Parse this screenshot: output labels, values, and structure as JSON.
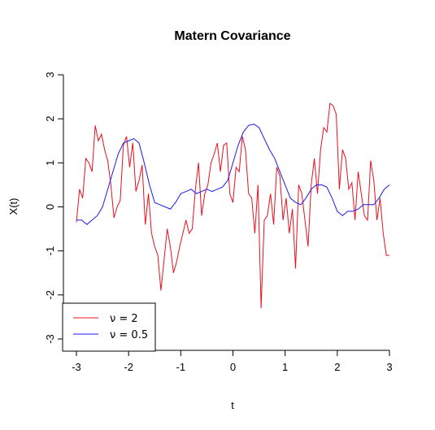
{
  "chart_data": {
    "type": "line",
    "title": "Matern Covariance",
    "xlabel": "t",
    "ylabel": "X(t)",
    "xlim": [
      -3,
      3
    ],
    "ylim": [
      -3,
      3
    ],
    "xticks": [
      "-3",
      "-2",
      "-1",
      "0",
      "1",
      "2",
      "3"
    ],
    "yticks": [
      "-3",
      "-2",
      "-1",
      "0",
      "1",
      "2",
      "3"
    ],
    "grid": false,
    "legend_position": "bottom-left",
    "series": [
      {
        "name": "ν = 2",
        "color": "#e8101f",
        "x": [
          -3.0,
          -2.94,
          -2.88,
          -2.82,
          -2.76,
          -2.7,
          -2.64,
          -2.58,
          -2.52,
          -2.46,
          -2.4,
          -2.34,
          -2.28,
          -2.22,
          -2.16,
          -2.1,
          -2.04,
          -1.98,
          -1.92,
          -1.86,
          -1.8,
          -1.74,
          -1.68,
          -1.62,
          -1.56,
          -1.5,
          -1.44,
          -1.38,
          -1.32,
          -1.26,
          -1.2,
          -1.14,
          -1.08,
          -1.02,
          -0.96,
          -0.9,
          -0.84,
          -0.78,
          -0.72,
          -0.66,
          -0.6,
          -0.54,
          -0.48,
          -0.42,
          -0.36,
          -0.3,
          -0.24,
          -0.18,
          -0.12,
          -0.06,
          0.0,
          0.06,
          0.12,
          0.18,
          0.24,
          0.3,
          0.36,
          0.42,
          0.48,
          0.54,
          0.6,
          0.66,
          0.72,
          0.78,
          0.84,
          0.9,
          0.96,
          1.02,
          1.08,
          1.14,
          1.2,
          1.26,
          1.32,
          1.38,
          1.44,
          1.5,
          1.56,
          1.62,
          1.68,
          1.74,
          1.8,
          1.86,
          1.92,
          1.98,
          2.04,
          2.1,
          2.16,
          2.22,
          2.28,
          2.34,
          2.4,
          2.46,
          2.52,
          2.58,
          2.64,
          2.7,
          2.76,
          2.82,
          2.88,
          2.94,
          3.0
        ],
        "y": [
          -0.35,
          0.4,
          0.2,
          1.1,
          1.0,
          0.8,
          1.85,
          1.5,
          1.65,
          1.3,
          1.05,
          0.5,
          -0.25,
          0.0,
          0.15,
          1.4,
          1.6,
          0.9,
          1.45,
          0.35,
          0.6,
          0.95,
          -0.4,
          0.3,
          -0.6,
          -0.9,
          -1.1,
          -1.9,
          -1.2,
          -0.5,
          -0.9,
          -1.5,
          -1.25,
          -0.9,
          -0.6,
          -0.3,
          -0.6,
          -0.5,
          0.4,
          1.0,
          -0.2,
          0.3,
          0.5,
          1.0,
          1.2,
          1.45,
          0.8,
          1.4,
          1.45,
          0.3,
          0.1,
          0.9,
          0.8,
          1.6,
          1.3,
          0.3,
          0.2,
          -0.6,
          0.5,
          -2.3,
          -0.3,
          -0.2,
          0.3,
          -0.4,
          0.9,
          0.7,
          -0.3,
          0.2,
          -0.6,
          -0.05,
          -1.4,
          0.5,
          0.3,
          -0.3,
          -0.9,
          0.5,
          1.1,
          0.3,
          1.3,
          1.8,
          1.7,
          2.35,
          2.3,
          2.1,
          0.4,
          1.3,
          1.1,
          0.4,
          0.55,
          -0.3,
          0.8,
          0.3,
          -0.2,
          -0.3,
          1.05,
          0.6,
          -0.3,
          0.2,
          -0.6,
          -1.1,
          -1.1
        ]
      },
      {
        "name": "ν = 0.5",
        "color": "#1a1aee",
        "x": [
          -3.0,
          -2.9,
          -2.8,
          -2.7,
          -2.6,
          -2.5,
          -2.4,
          -2.3,
          -2.2,
          -2.1,
          -2.0,
          -1.9,
          -1.8,
          -1.7,
          -1.6,
          -1.5,
          -1.4,
          -1.3,
          -1.2,
          -1.1,
          -1.0,
          -0.9,
          -0.8,
          -0.7,
          -0.6,
          -0.5,
          -0.4,
          -0.3,
          -0.2,
          -0.1,
          0.0,
          0.1,
          0.2,
          0.3,
          0.4,
          0.5,
          0.6,
          0.7,
          0.8,
          0.9,
          1.0,
          1.1,
          1.2,
          1.3,
          1.4,
          1.5,
          1.6,
          1.7,
          1.8,
          1.9,
          2.0,
          2.1,
          2.2,
          2.3,
          2.4,
          2.5,
          2.6,
          2.7,
          2.8,
          2.9,
          3.0
        ],
        "y": [
          -0.3,
          -0.3,
          -0.4,
          -0.3,
          -0.2,
          0.0,
          0.4,
          0.8,
          1.2,
          1.45,
          1.5,
          1.55,
          1.45,
          1.0,
          0.5,
          0.1,
          0.05,
          0.0,
          -0.05,
          0.1,
          0.3,
          0.35,
          0.4,
          0.3,
          0.35,
          0.4,
          0.35,
          0.4,
          0.45,
          0.6,
          1.0,
          1.4,
          1.7,
          1.85,
          1.88,
          1.8,
          1.55,
          1.3,
          1.1,
          0.8,
          0.5,
          0.2,
          0.1,
          0.05,
          0.2,
          0.4,
          0.5,
          0.5,
          0.45,
          0.2,
          -0.1,
          -0.2,
          -0.1,
          -0.1,
          -0.05,
          0.05,
          0.05,
          0.05,
          0.2,
          0.4,
          0.5
        ]
      }
    ]
  }
}
